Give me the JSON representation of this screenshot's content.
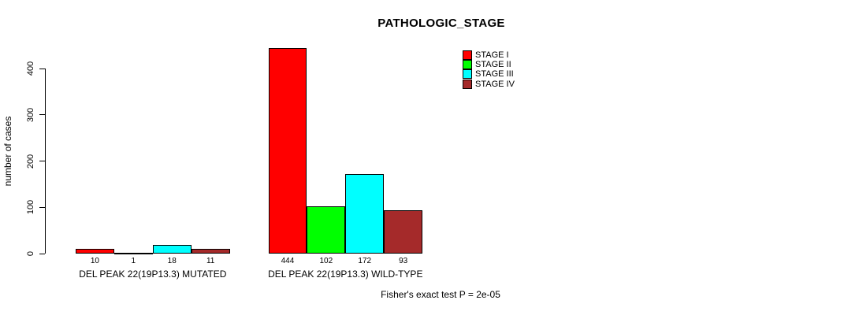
{
  "chart_data": {
    "type": "bar",
    "title": "PATHOLOGIC_STAGE",
    "ylabel": "number of cases",
    "xlabel": "",
    "ylim": [
      0,
      400
    ],
    "yticks": [
      0,
      100,
      200,
      300,
      400
    ],
    "grid": false,
    "legend_position": "top-right",
    "categories": [
      "DEL PEAK 22(19P13.3) MUTATED",
      "DEL PEAK 22(19P13.3) WILD-TYPE"
    ],
    "series": [
      {
        "name": "STAGE I",
        "color": "#FF0000",
        "values": [
          10,
          444
        ]
      },
      {
        "name": "STAGE II",
        "color": "#00FF00",
        "values": [
          1,
          102
        ]
      },
      {
        "name": "STAGE III",
        "color": "#00FFFF",
        "values": [
          18,
          172
        ]
      },
      {
        "name": "STAGE IV",
        "color": "#A52A2A",
        "values": [
          11,
          93
        ]
      }
    ],
    "bar_value_labels": [
      [
        "10",
        "1",
        "18",
        "11"
      ],
      [
        "444",
        "102",
        "172",
        "93"
      ]
    ],
    "annotation": "Fisher's exact test P = 2e-05"
  }
}
